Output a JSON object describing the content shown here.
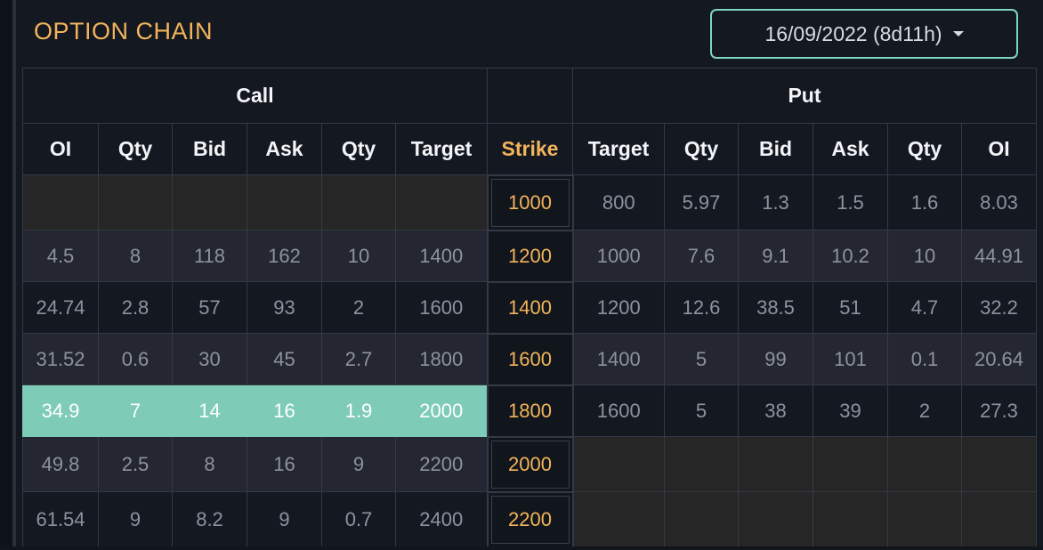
{
  "title": "OPTION CHAIN",
  "expiry": {
    "selected": "16/09/2022 (8d11h)"
  },
  "colors": {
    "accent": "#f2b45b",
    "itm_highlight": "#7ecbb7",
    "select_border": "#7dd4c0"
  },
  "groups": {
    "call": "Call",
    "strike": "",
    "put": "Put"
  },
  "columns": {
    "call": [
      "OI",
      "Qty",
      "Bid",
      "Ask",
      "Qty",
      "Target"
    ],
    "strike": "Strike",
    "put": [
      "Target",
      "Qty",
      "Bid",
      "Ask",
      "Qty",
      "OI"
    ]
  },
  "rows": [
    {
      "call": [
        "",
        "",
        "",
        "",
        "",
        ""
      ],
      "strike": "1000",
      "put": [
        "800",
        "5.97",
        "1.3",
        "1.5",
        "1.6",
        "8.03"
      ]
    },
    {
      "call": [
        "4.5",
        "8",
        "118",
        "162",
        "10",
        "1400"
      ],
      "strike": "1200",
      "put": [
        "1000",
        "7.6",
        "9.1",
        "10.2",
        "10",
        "44.91"
      ]
    },
    {
      "call": [
        "24.74",
        "2.8",
        "57",
        "93",
        "2",
        "1600"
      ],
      "strike": "1400",
      "put": [
        "1200",
        "12.6",
        "38.5",
        "51",
        "4.7",
        "32.2"
      ]
    },
    {
      "call": [
        "31.52",
        "0.6",
        "30",
        "45",
        "2.7",
        "1800"
      ],
      "strike": "1600",
      "put": [
        "1400",
        "5",
        "99",
        "101",
        "0.1",
        "20.64"
      ]
    },
    {
      "call": [
        "34.9",
        "7",
        "14",
        "16",
        "1.9",
        "2000"
      ],
      "strike": "1800",
      "put": [
        "1600",
        "5",
        "38",
        "39",
        "2",
        "27.3"
      ]
    },
    {
      "call": [
        "49.8",
        "2.5",
        "8",
        "16",
        "9",
        "2200"
      ],
      "strike": "2000",
      "put": [
        "",
        "",
        "",
        "",
        "",
        ""
      ]
    },
    {
      "call": [
        "61.54",
        "9",
        "8.2",
        "9",
        "0.7",
        "2400"
      ],
      "strike": "2200",
      "put": [
        "",
        "",
        "",
        "",
        "",
        ""
      ]
    }
  ]
}
